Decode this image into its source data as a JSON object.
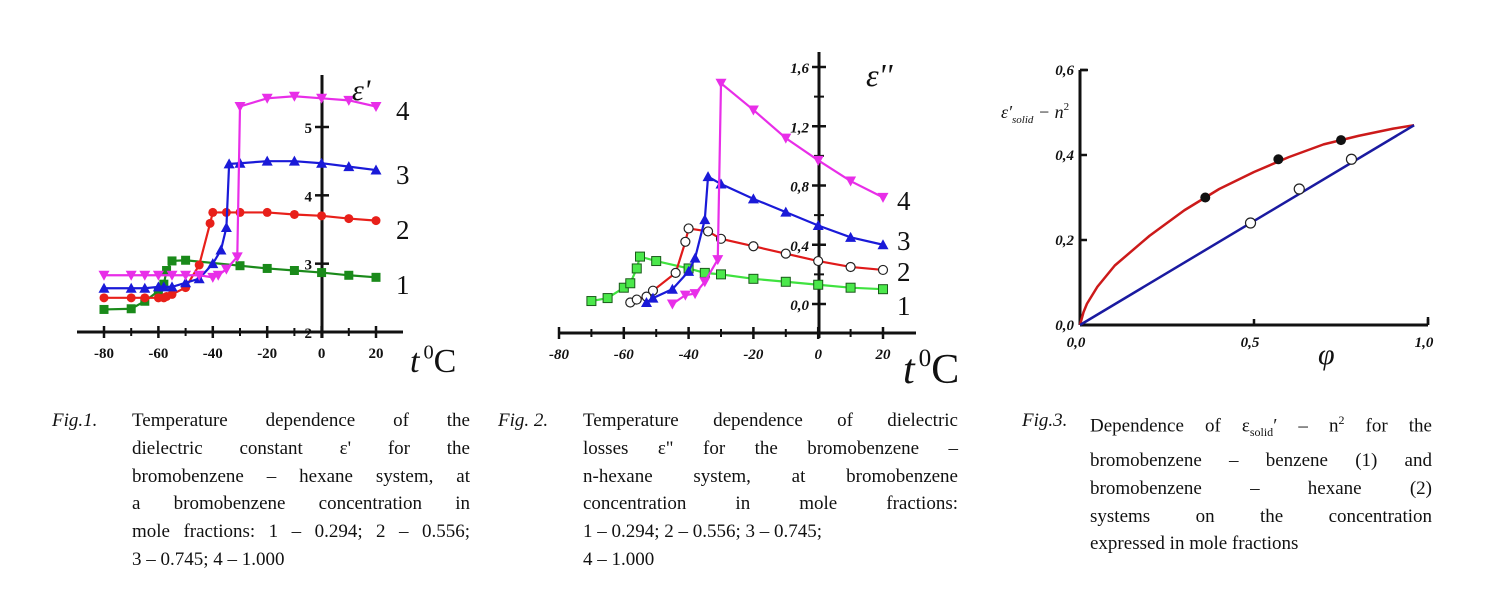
{
  "chart_data": [
    {
      "type": "line",
      "title": "",
      "ylabel": "ε'",
      "xlabel": "t 0C",
      "xlabel_parts": {
        "t": "t",
        "sup": "0",
        "unit": "C"
      },
      "xlim": [
        -90,
        30
      ],
      "ylim": [
        2,
        5.8
      ],
      "xticks": [
        "-80",
        "-60",
        "-40",
        "-20",
        "0",
        "20"
      ],
      "xtick_values": [
        -80,
        -60,
        -40,
        -20,
        0,
        20
      ],
      "yticks": [
        "2",
        "3",
        "4",
        "5"
      ],
      "ytick_values": [
        2,
        3,
        4,
        5
      ],
      "series": [
        {
          "name": "1",
          "color": "#1a8a1a",
          "marker": "square",
          "x": [
            -80,
            -70,
            -65,
            -60,
            -58,
            -57,
            -55,
            -50,
            -30,
            -20,
            -10,
            0,
            10,
            20
          ],
          "y": [
            2.33,
            2.34,
            2.45,
            2.6,
            2.7,
            2.9,
            3.04,
            3.05,
            2.97,
            2.93,
            2.9,
            2.87,
            2.83,
            2.8
          ]
        },
        {
          "name": "2",
          "color": "#e8201a",
          "marker": "circle",
          "x": [
            -80,
            -70,
            -65,
            -60,
            -58,
            -57,
            -55,
            -50,
            -45,
            -41,
            -40,
            -35,
            -30,
            -20,
            -10,
            0,
            10,
            20
          ],
          "y": [
            2.5,
            2.5,
            2.5,
            2.5,
            2.5,
            2.52,
            2.55,
            2.65,
            2.98,
            3.59,
            3.75,
            3.75,
            3.75,
            3.75,
            3.72,
            3.7,
            3.66,
            3.63
          ]
        },
        {
          "name": "3",
          "color": "#1a1ad8",
          "marker": "triangle-up",
          "x": [
            -80,
            -70,
            -65,
            -60,
            -58,
            -55,
            -50,
            -45,
            -40,
            -37,
            -35,
            -34,
            -30,
            -20,
            -10,
            0,
            10,
            20
          ],
          "y": [
            2.64,
            2.64,
            2.64,
            2.66,
            2.66,
            2.66,
            2.72,
            2.78,
            3.0,
            3.2,
            3.53,
            4.46,
            4.47,
            4.5,
            4.5,
            4.47,
            4.42,
            4.37
          ]
        },
        {
          "name": "4",
          "color": "#e82ee8",
          "marker": "triangle-down",
          "x": [
            -80,
            -70,
            -65,
            -60,
            -55,
            -50,
            -45,
            -40,
            -38,
            -35,
            -31,
            -30,
            -20,
            -10,
            0,
            10,
            20
          ],
          "y": [
            2.83,
            2.83,
            2.83,
            2.83,
            2.83,
            2.83,
            2.83,
            2.8,
            2.83,
            2.92,
            3.1,
            5.3,
            5.42,
            5.45,
            5.42,
            5.39,
            5.3
          ]
        }
      ]
    },
    {
      "type": "line",
      "title": "",
      "ylabel": "ε''",
      "xlabel": "t 0C",
      "xlabel_parts": {
        "t": "t",
        "sup": "0",
        "unit": "C"
      },
      "xlim": [
        -80,
        30
      ],
      "ylim": [
        -0.2,
        1.7
      ],
      "xticks": [
        "-80",
        "-60",
        "-40",
        "-20",
        "0",
        "20"
      ],
      "xtick_values": [
        -80,
        -60,
        -40,
        -20,
        0,
        20
      ],
      "yticks": [
        "0,0",
        "0,4",
        "0,8",
        "1,2",
        "1,6"
      ],
      "ytick_values": [
        0,
        0.4,
        0.8,
        1.2,
        1.6
      ],
      "series": [
        {
          "name": "1",
          "color": "#3fe23f",
          "marker": "square-open-green",
          "x": [
            -70,
            -65,
            -60,
            -58,
            -56,
            -55,
            -50,
            -40,
            -35,
            -30,
            -20,
            -10,
            0,
            10,
            20
          ],
          "y": [
            0.02,
            0.04,
            0.11,
            0.14,
            0.24,
            0.32,
            0.29,
            0.24,
            0.21,
            0.2,
            0.17,
            0.15,
            0.13,
            0.11,
            0.1
          ]
        },
        {
          "name": "2",
          "color": "#e01a1a",
          "marker": "circle-open",
          "x": [
            -58,
            -56,
            -53,
            -51,
            -44,
            -41,
            -40,
            -34,
            -30,
            -20,
            -10,
            0,
            10,
            20
          ],
          "y": [
            0.01,
            0.03,
            0.05,
            0.09,
            0.21,
            0.42,
            0.51,
            0.49,
            0.44,
            0.39,
            0.34,
            0.29,
            0.25,
            0.23
          ]
        },
        {
          "name": "3",
          "color": "#1a1ad8",
          "marker": "triangle-up",
          "x": [
            -53,
            -51,
            -45,
            -40,
            -38,
            -35,
            -34,
            -30,
            -20,
            -10,
            0,
            10,
            20
          ],
          "y": [
            0.01,
            0.04,
            0.1,
            0.22,
            0.31,
            0.57,
            0.86,
            0.81,
            0.71,
            0.62,
            0.53,
            0.45,
            0.4
          ]
        },
        {
          "name": "4",
          "color": "#e82ee8",
          "marker": "triangle-down",
          "x": [
            -45,
            -41,
            -38,
            -35,
            -31,
            -30,
            -20,
            -10,
            0,
            10,
            20
          ],
          "y": [
            0.0,
            0.06,
            0.07,
            0.15,
            0.3,
            1.49,
            1.31,
            1.12,
            0.97,
            0.83,
            0.72
          ]
        }
      ]
    },
    {
      "type": "scatter",
      "title": "",
      "ylabel": "ε'solid − n2",
      "ylabel_parts": {
        "base": "ε",
        "prime": "′",
        "sub": "solid",
        "rest": " − n",
        "sup": "2"
      },
      "xlabel": "φ",
      "xlim": [
        0,
        1.0
      ],
      "ylim": [
        0,
        0.6
      ],
      "xticks": [
        "0,0",
        "0,5",
        "1,0"
      ],
      "xtick_values": [
        0,
        0.5,
        1.0
      ],
      "yticks": [
        "0,0",
        "0,2",
        "0,4",
        "0,6"
      ],
      "ytick_values": [
        0,
        0.2,
        0.4,
        0.6
      ],
      "series": [
        {
          "name": "1 (bromobenzene – benzene)",
          "color": "#cc1a1a",
          "marker": "circle-filled-black",
          "points_x": [
            0.36,
            0.57,
            0.75
          ],
          "points_y": [
            0.3,
            0.39,
            0.435
          ],
          "curve_x": [
            0,
            0.01,
            0.02,
            0.05,
            0.1,
            0.2,
            0.3,
            0.4,
            0.5,
            0.6,
            0.7,
            0.8,
            0.9,
            0.96
          ],
          "curve_y": [
            0,
            0.03,
            0.05,
            0.09,
            0.14,
            0.21,
            0.27,
            0.32,
            0.36,
            0.395,
            0.425,
            0.445,
            0.462,
            0.47
          ]
        },
        {
          "name": "2 (bromobenzene – hexane)",
          "color": "#1a1aa0",
          "marker": "circle-open",
          "points_x": [
            0.49,
            0.63,
            0.78
          ],
          "points_y": [
            0.24,
            0.32,
            0.39
          ],
          "curve_x": [
            0,
            0.96
          ],
          "curve_y": [
            0,
            0.47
          ]
        }
      ]
    }
  ],
  "captions": [
    {
      "label": "Fig.1.",
      "lines": [
        "Temperature dependence of the",
        "dielectric constant ε' for the",
        "bromobenzene – hexane system, at",
        "a bromobenzene concentration in",
        "mole fractions: 1 – 0.294; 2 – 0.556;",
        "3 – 0.745; 4 – 1.000"
      ]
    },
    {
      "label": "Fig. 2.",
      "lines": [
        "Temperature dependence of dielectric",
        "losses ε\" for the bromobenzene –",
        "n-hexane system, at bromobenzene",
        "concentration in mole fractions:",
        "1 – 0.294; 2 – 0.556; 3 – 0.745;",
        "4 – 1.000"
      ]
    },
    {
      "label": "Fig.3.",
      "first_line": {
        "pre": "Dependence of ε",
        "sub": "solid",
        "mid": "′ – n",
        "sup": "2",
        "post": " for the"
      },
      "lines": [
        "bromobenzene – benzene (1) and",
        "bromobenzene – hexane (2)",
        "systems on the concentration",
        "expressed in mole fractions"
      ]
    }
  ]
}
